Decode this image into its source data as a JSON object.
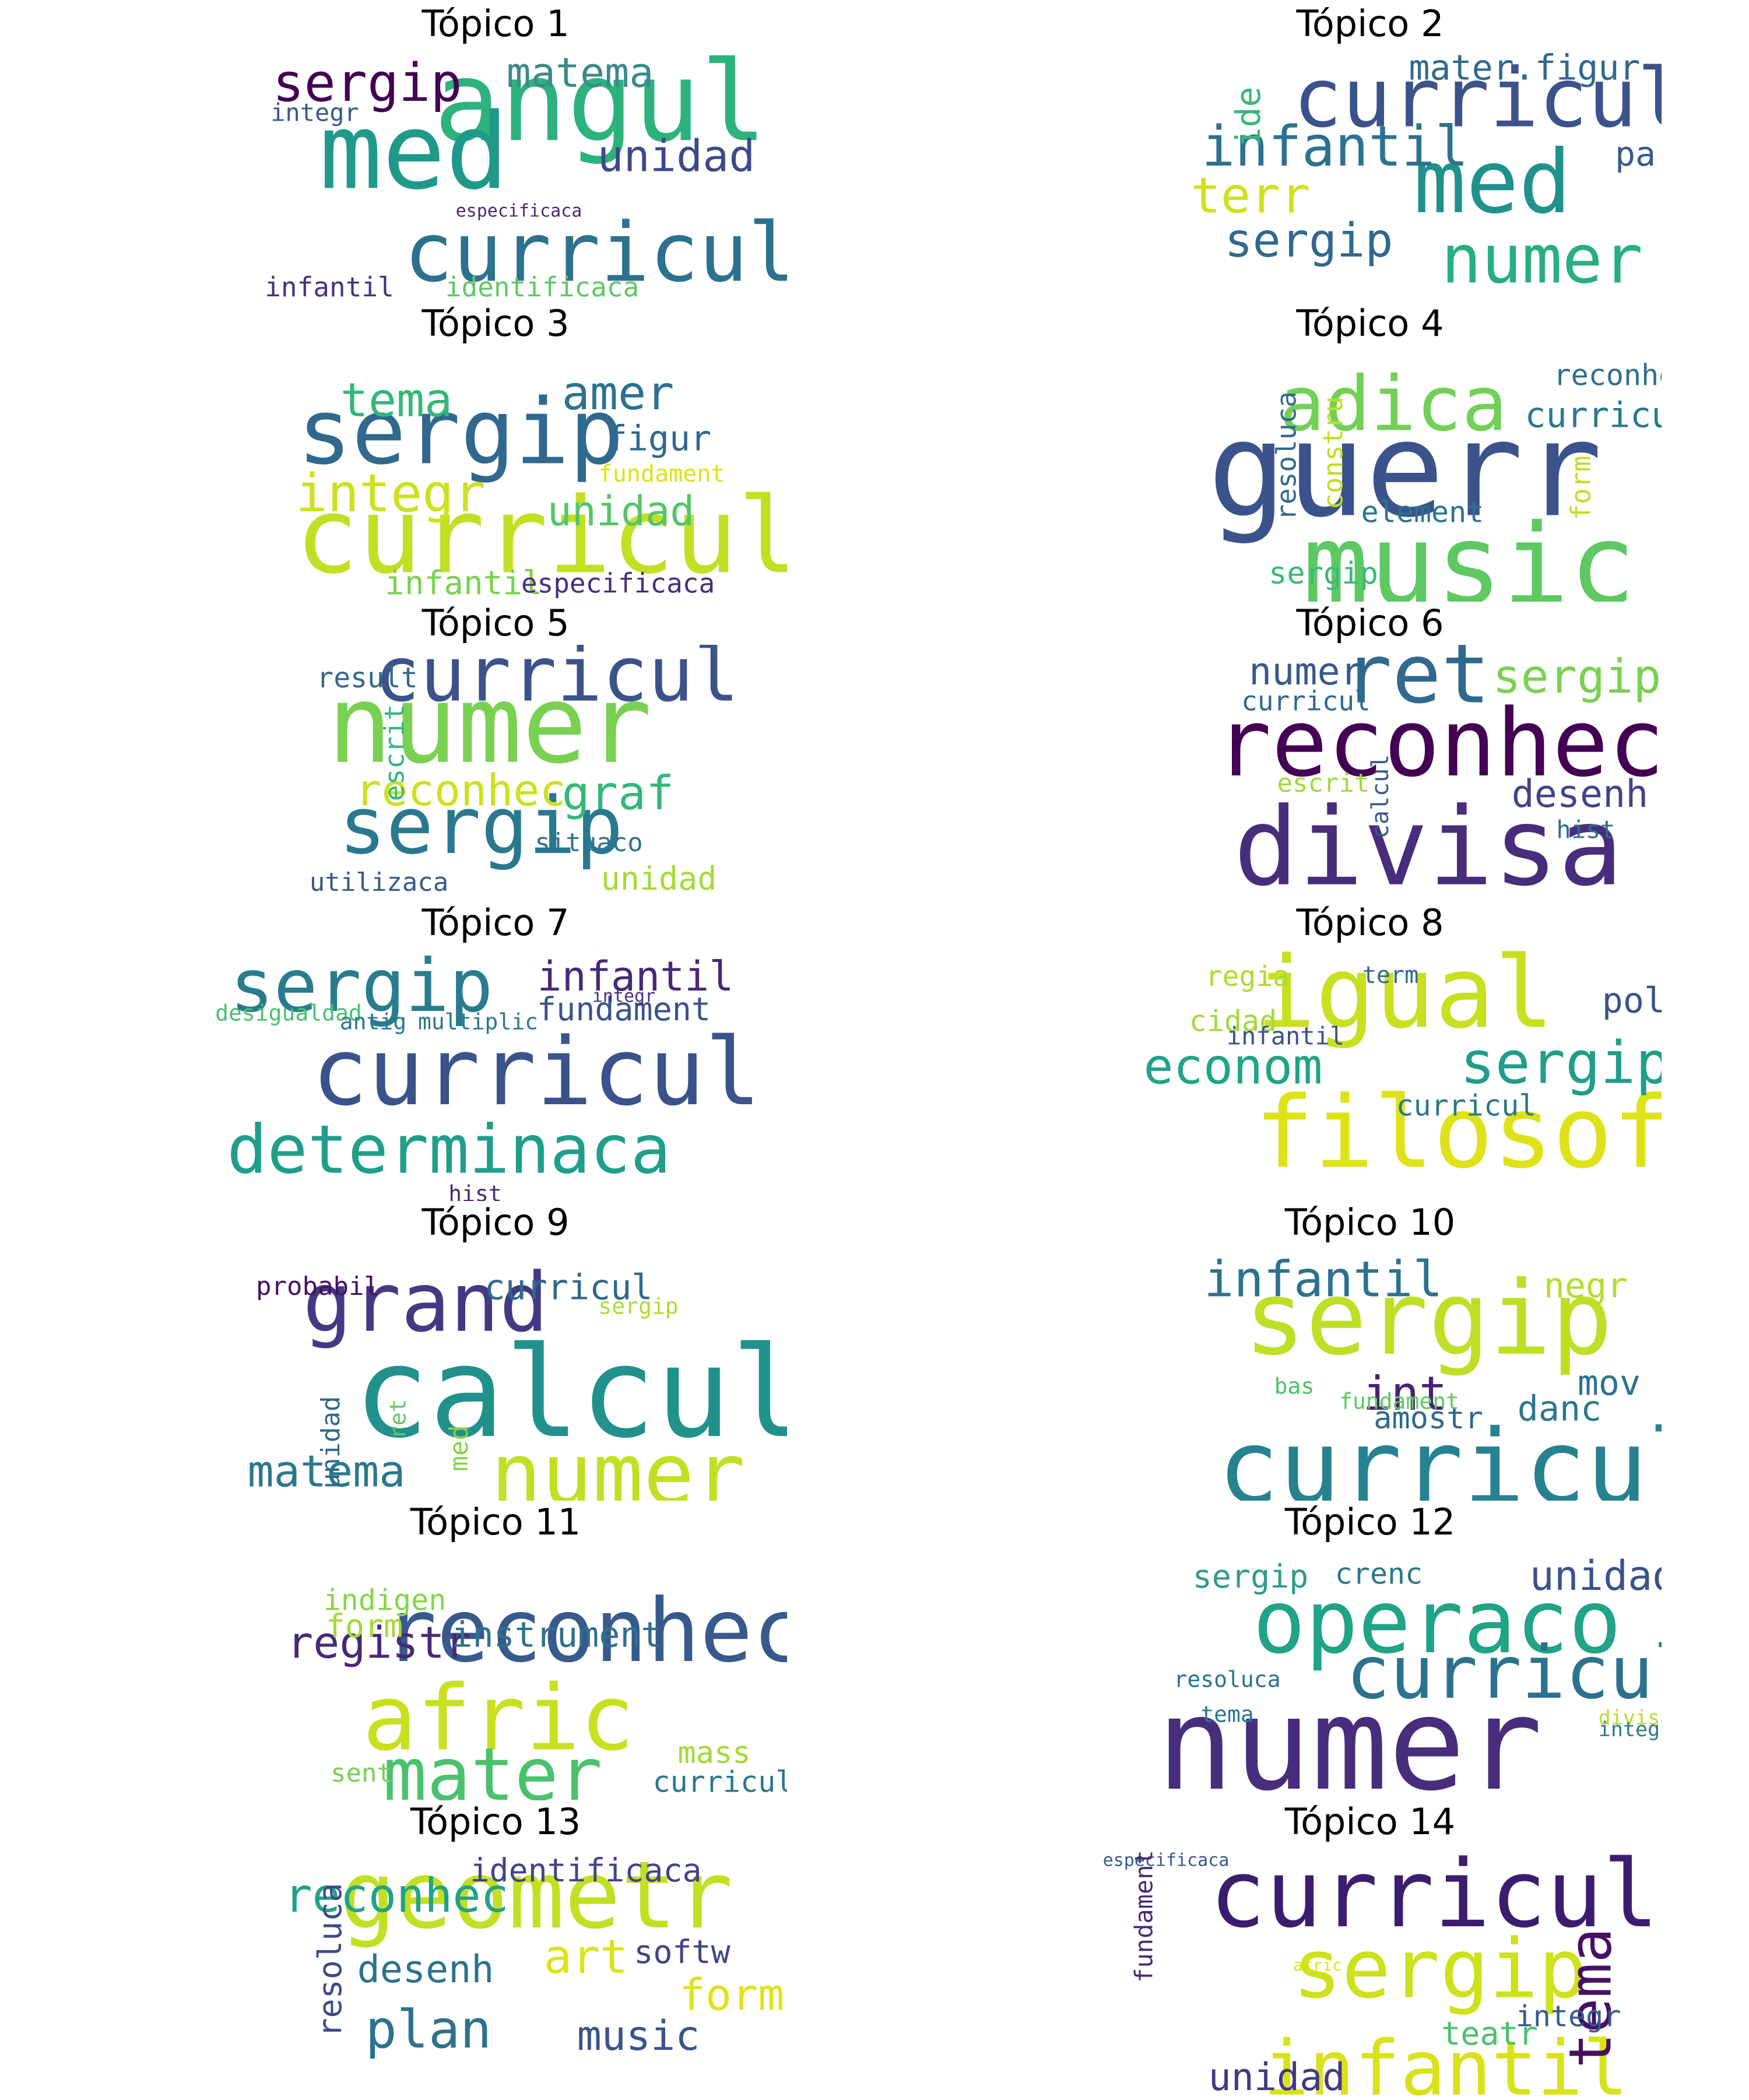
{
  "colors": {
    "background": "#ffffff",
    "title": "#000000",
    "palette": "viridis"
  },
  "panels": [
    {
      "title": "Tópico 1",
      "words": [
        {
          "text": "angul",
          "color": "#2db27d"
        },
        {
          "text": "med",
          "color": "#1f9a8a"
        },
        {
          "text": "curricul",
          "color": "#2c728e"
        },
        {
          "text": "sergip",
          "color": "#440154"
        },
        {
          "text": "matema",
          "color": "#3b8a8c"
        },
        {
          "text": "unidad",
          "color": "#3e4989"
        },
        {
          "text": "integr",
          "color": "#38598c"
        },
        {
          "text": "especificaca",
          "color": "#482878"
        },
        {
          "text": "infantil",
          "color": "#46327e"
        },
        {
          "text": "identificaca",
          "color": "#5ec962"
        }
      ]
    },
    {
      "title": "Tópico 2",
      "words": [
        {
          "text": "curricul",
          "color": "#3b528b"
        },
        {
          "text": "med",
          "color": "#21918c"
        },
        {
          "text": "numer",
          "color": "#28ae80"
        },
        {
          "text": "infantil",
          "color": "#2c728e"
        },
        {
          "text": "mater.figur",
          "color": "#31688e"
        },
        {
          "text": "ide",
          "color": "#35b779"
        },
        {
          "text": "terr",
          "color": "#d0e11c"
        },
        {
          "text": "sergip",
          "color": "#31688e"
        },
        {
          "text": "part",
          "color": "#38598c"
        }
      ]
    },
    {
      "title": "Tópico 3",
      "words": [
        {
          "text": "curricul",
          "color": "#c2df23"
        },
        {
          "text": "sergip",
          "color": "#31688e"
        },
        {
          "text": "integr",
          "color": "#cde11d"
        },
        {
          "text": "tema",
          "color": "#35b779"
        },
        {
          "text": "amer",
          "color": "#2c728e"
        },
        {
          "text": "figur",
          "color": "#31688e"
        },
        {
          "text": "fundament",
          "color": "#dde318"
        },
        {
          "text": "unidad",
          "color": "#52c569"
        },
        {
          "text": "infantil",
          "color": "#7ad151"
        },
        {
          "text": "especificaca",
          "color": "#472d7b"
        }
      ]
    },
    {
      "title": "Tópico 4",
      "words": [
        {
          "text": "guerr",
          "color": "#3b528b"
        },
        {
          "text": "music",
          "color": "#5ec962"
        },
        {
          "text": "adica",
          "color": "#73d056"
        },
        {
          "text": "curricul",
          "color": "#2a788e"
        },
        {
          "text": "reconhec",
          "color": "#2e6f8e"
        },
        {
          "text": "element",
          "color": "#2c728e"
        },
        {
          "text": "sergip",
          "color": "#3aba76"
        },
        {
          "text": "resoluca",
          "color": "#31688e"
        },
        {
          "text": "constru",
          "color": "#bddf26"
        },
        {
          "text": "form",
          "color": "#bddf26"
        }
      ]
    },
    {
      "title": "Tópico 5",
      "words": [
        {
          "text": "numer",
          "color": "#7ad151"
        },
        {
          "text": "curricul",
          "color": "#3b528b"
        },
        {
          "text": "sergip",
          "color": "#2a788e"
        },
        {
          "text": "reconhec",
          "color": "#cde11d"
        },
        {
          "text": "graf",
          "color": "#35b779"
        },
        {
          "text": "result",
          "color": "#31688e"
        },
        {
          "text": "escrit",
          "color": "#35b779"
        },
        {
          "text": "situaco",
          "color": "#2c728e"
        },
        {
          "text": "unidad",
          "color": "#a5db36"
        },
        {
          "text": "utilizaca",
          "color": "#38598c"
        }
      ]
    },
    {
      "title": "Tópico 6",
      "words": [
        {
          "text": "divisa",
          "color": "#472d7b"
        },
        {
          "text": "reconhec",
          "color": "#440154"
        },
        {
          "text": "ret",
          "color": "#31688e"
        },
        {
          "text": "numer",
          "color": "#38598c"
        },
        {
          "text": "sergip",
          "color": "#7ad151"
        },
        {
          "text": "curricul",
          "color": "#31688e"
        },
        {
          "text": "desenh",
          "color": "#414487"
        },
        {
          "text": "escrit",
          "color": "#9fda3a"
        },
        {
          "text": "calcul",
          "color": "#38598c"
        },
        {
          "text": "hist",
          "color": "#2e6f8e"
        }
      ]
    },
    {
      "title": "Tópico 7",
      "words": [
        {
          "text": "curricul",
          "color": "#3b528b"
        },
        {
          "text": "sergip",
          "color": "#287c8e"
        },
        {
          "text": "determinaca",
          "color": "#1f9e89"
        },
        {
          "text": "infantil",
          "color": "#482878"
        },
        {
          "text": "fundament",
          "color": "#3b528b"
        },
        {
          "text": "integr",
          "color": "#46327e"
        },
        {
          "text": "desigualdad",
          "color": "#4ac16d"
        },
        {
          "text": "antig",
          "color": "#2a788e"
        },
        {
          "text": "multiplic",
          "color": "#2a788e"
        },
        {
          "text": "hist",
          "color": "#482878"
        }
      ]
    },
    {
      "title": "Tópico 8",
      "words": [
        {
          "text": "igual",
          "color": "#c8e020"
        },
        {
          "text": "filosof",
          "color": "#dde318"
        },
        {
          "text": "sergip",
          "color": "#1f9e89"
        },
        {
          "text": "econom",
          "color": "#20a386"
        },
        {
          "text": "poli",
          "color": "#3b528b"
        },
        {
          "text": "regia",
          "color": "#addc30"
        },
        {
          "text": "cidad",
          "color": "#9fda3a"
        },
        {
          "text": "term",
          "color": "#31688e"
        },
        {
          "text": "infantil",
          "color": "#3b528b"
        },
        {
          "text": "curricul",
          "color": "#2a788e"
        }
      ]
    },
    {
      "title": "Tópico 9",
      "words": [
        {
          "text": "grand",
          "color": "#443983"
        },
        {
          "text": "calcul",
          "color": "#21918c"
        },
        {
          "text": "numer",
          "color": "#c2df23"
        },
        {
          "text": "matema",
          "color": "#2a788e"
        },
        {
          "text": "curricul",
          "color": "#31688e"
        },
        {
          "text": "probabil",
          "color": "#471063"
        },
        {
          "text": "sergip",
          "color": "#addc30"
        },
        {
          "text": "unidad",
          "color": "#31688e"
        },
        {
          "text": "ret",
          "color": "#5ec962"
        },
        {
          "text": "med",
          "color": "#84d44b"
        }
      ]
    },
    {
      "title": "Tópico 10",
      "words": [
        {
          "text": "sergip",
          "color": "#bddf26"
        },
        {
          "text": "curricul",
          "color": "#26828e"
        },
        {
          "text": "infantil",
          "color": "#2c728e"
        },
        {
          "text": "negr",
          "color": "#b5de2b"
        },
        {
          "text": "int",
          "color": "#482173"
        },
        {
          "text": "mov",
          "color": "#2c728e"
        },
        {
          "text": "danc",
          "color": "#2a788e"
        },
        {
          "text": "amostr",
          "color": "#31688e"
        },
        {
          "text": "fundament",
          "color": "#5ec962"
        },
        {
          "text": "bas",
          "color": "#4ac16d"
        }
      ]
    },
    {
      "title": "Tópico 11",
      "words": [
        {
          "text": "reconhec",
          "color": "#38598c"
        },
        {
          "text": "afric",
          "color": "#c8e020"
        },
        {
          "text": "mater",
          "color": "#4ac16d"
        },
        {
          "text": "registr",
          "color": "#482878"
        },
        {
          "text": "instrument",
          "color": "#2e6f8e"
        },
        {
          "text": "indigen",
          "color": "#86d549"
        },
        {
          "text": "form",
          "color": "#a2da37"
        },
        {
          "text": "sent",
          "color": "#7ad151"
        },
        {
          "text": "mass",
          "color": "#a2da37"
        },
        {
          "text": "curricul",
          "color": "#2a788e"
        }
      ]
    },
    {
      "title": "Tópico 12",
      "words": [
        {
          "text": "numer",
          "color": "#472d7b"
        },
        {
          "text": "operaco",
          "color": "#20a386"
        },
        {
          "text": "curricul",
          "color": "#2c728e"
        },
        {
          "text": "unidad",
          "color": "#3b528b"
        },
        {
          "text": "sergip",
          "color": "#2e9c88"
        },
        {
          "text": "crenc",
          "color": "#2a788e"
        },
        {
          "text": "resoluca",
          "color": "#2c728e"
        },
        {
          "text": "tema",
          "color": "#2a788e"
        },
        {
          "text": "divisa",
          "color": "#b5de2b"
        },
        {
          "text": "integr",
          "color": "#2a788e"
        }
      ]
    },
    {
      "title": "Tópico 13",
      "words": [
        {
          "text": "geometr",
          "color": "#c2df23"
        },
        {
          "text": "reconhec",
          "color": "#20a386"
        },
        {
          "text": "identificaca",
          "color": "#414487"
        },
        {
          "text": "art",
          "color": "#dde318"
        },
        {
          "text": "desenh",
          "color": "#2c728e"
        },
        {
          "text": "softw",
          "color": "#414487"
        },
        {
          "text": "form",
          "color": "#e0e318"
        },
        {
          "text": "plan",
          "color": "#2c728e"
        },
        {
          "text": "music",
          "color": "#3b528b"
        },
        {
          "text": "resoluca",
          "color": "#3e4989"
        }
      ]
    },
    {
      "title": "Tópico 14",
      "words": [
        {
          "text": "curricul",
          "color": "#3b1c6e"
        },
        {
          "text": "sergip",
          "color": "#cde11d"
        },
        {
          "text": "infantil",
          "color": "#d8e219"
        },
        {
          "text": "tema",
          "color": "#471063"
        },
        {
          "text": "unidad",
          "color": "#443983"
        },
        {
          "text": "especificaca",
          "color": "#38598c"
        },
        {
          "text": "fundament",
          "color": "#482878"
        },
        {
          "text": "afric",
          "color": "#dde318"
        },
        {
          "text": "teatr",
          "color": "#4ac16d"
        },
        {
          "text": "integr",
          "color": "#38598c"
        }
      ]
    }
  ]
}
